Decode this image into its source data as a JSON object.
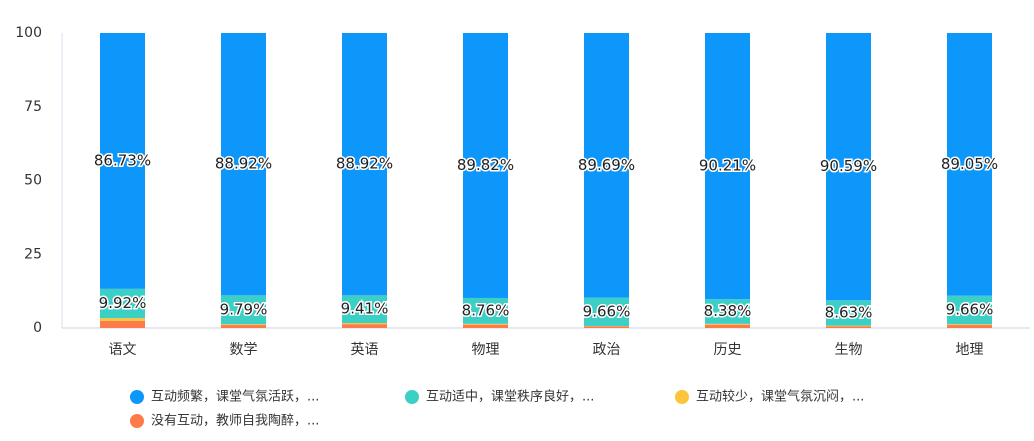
{
  "chart_data": {
    "type": "stacked-bar",
    "categories": [
      "语文",
      "数学",
      "英语",
      "物理",
      "政治",
      "历史",
      "生物",
      "地理"
    ],
    "series": [
      {
        "name": "互动频繁，课堂气氛活跃，...",
        "color": "#0d97fb",
        "values": [
          86.73,
          88.92,
          88.92,
          89.82,
          89.69,
          90.21,
          90.59,
          89.05
        ],
        "value_labels": [
          "86.73%",
          "88.92%",
          "88.92%",
          "89.82%",
          "89.69%",
          "90.21%",
          "90.59%",
          "89.05%"
        ]
      },
      {
        "name": "互动适中，课堂秩序良好，...",
        "color": "#3ccfc6",
        "values": [
          9.92,
          9.79,
          9.41,
          8.76,
          9.66,
          8.38,
          8.63,
          9.66
        ],
        "value_labels": [
          "9.92%",
          "9.79%",
          "9.41%",
          "8.76%",
          "9.66%",
          "8.38%",
          "8.63%",
          "9.66%"
        ]
      },
      {
        "name": "互动较少，课堂气氛沉闷，...",
        "color": "#fbc43a",
        "values": [
          0.95,
          0.29,
          0.37,
          0.32,
          0.15,
          0.31,
          0.18,
          0.29
        ]
      },
      {
        "name": "没有互动，教师自我陶醉，...",
        "color": "#fd7b48",
        "values": [
          2.4,
          1.0,
          1.3,
          1.1,
          0.5,
          1.1,
          0.6,
          1.0
        ]
      }
    ],
    "ylim": [
      0,
      100
    ],
    "yticks": [
      0,
      25,
      50,
      75,
      100
    ],
    "grid": false
  }
}
